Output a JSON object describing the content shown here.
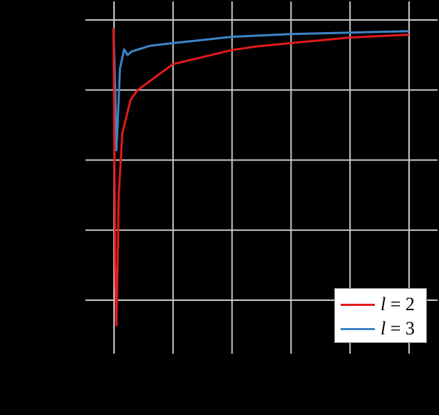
{
  "chart_data": {
    "type": "line",
    "title": "",
    "xlabel": "",
    "ylabel": "",
    "note": "Axis tick labels are not visible (rendered black on black background); values below are in grid-unit coordinates (x: 0-5 across 6 vertical gridlines, y: 0-4 across 5 horizontal gridlines).",
    "grid": true,
    "xlim": [
      0,
      5
    ],
    "ylim": [
      -0.8,
      4.2
    ],
    "x_gridlines": [
      0,
      1,
      2,
      3,
      4,
      5
    ],
    "y_gridlines": [
      0,
      1,
      2,
      3,
      4
    ],
    "legend_position": "lower right",
    "series": [
      {
        "name": "l = 2",
        "color": "#e31a1c",
        "points": [
          [
            -0.01,
            3.88
          ],
          [
            0.02,
            0.5
          ],
          [
            0.04,
            -0.36
          ],
          [
            0.06,
            0.5
          ],
          [
            0.08,
            1.5
          ],
          [
            0.14,
            2.38
          ],
          [
            0.28,
            2.86
          ],
          [
            0.4,
            3.0
          ],
          [
            1.0,
            3.37
          ],
          [
            2.0,
            3.57
          ],
          [
            2.4,
            3.62
          ],
          [
            3.0,
            3.67
          ],
          [
            4.0,
            3.75
          ],
          [
            5.0,
            3.79
          ]
        ]
      },
      {
        "name": "l = 3",
        "color": "#3d85c6",
        "points": [
          [
            -0.01,
            3.88
          ],
          [
            0.02,
            3.0
          ],
          [
            0.04,
            2.14
          ],
          [
            0.06,
            2.5
          ],
          [
            0.1,
            3.3
          ],
          [
            0.17,
            3.58
          ],
          [
            0.23,
            3.5
          ],
          [
            0.3,
            3.55
          ],
          [
            0.6,
            3.63
          ],
          [
            1.0,
            3.67
          ],
          [
            2.0,
            3.76
          ],
          [
            3.0,
            3.8
          ],
          [
            4.0,
            3.82
          ],
          [
            5.0,
            3.84
          ]
        ]
      }
    ]
  },
  "legend": {
    "items": [
      {
        "var": "l",
        "eq": " = 2",
        "color": "#e31a1c"
      },
      {
        "var": "l",
        "eq": " = 3",
        "color": "#3d85c6"
      }
    ]
  }
}
